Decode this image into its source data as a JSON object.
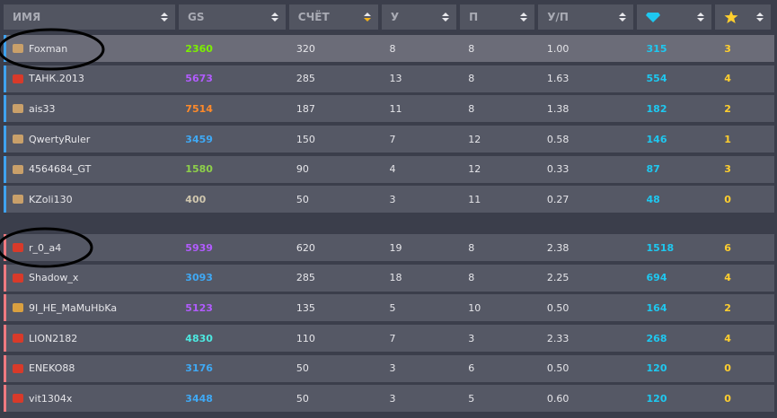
{
  "headers": [
    {
      "label": "ИМЯ"
    },
    {
      "label": "GS"
    },
    {
      "label": "СЧЁТ",
      "sorted": true
    },
    {
      "label": "У"
    },
    {
      "label": "П"
    },
    {
      "label": "У/П"
    },
    {
      "label": "",
      "icon": "diamond-icon"
    },
    {
      "label": "",
      "icon": "star-icon"
    }
  ],
  "colors": {
    "team1": "#3fa2ef",
    "team2": "#f07a80",
    "gem": "#1ec8f0",
    "star": "#ffcf2e"
  },
  "team1": [
    {
      "name": "Foxman",
      "gs": "2360",
      "gs_color": "#7cf000",
      "score": "320",
      "k": "8",
      "d": "8",
      "kd": "1.00",
      "gems": "315",
      "stars": "3",
      "rank": "#c9a06a",
      "highlight": true
    },
    {
      "name": "ТАНК.2013",
      "gs": "5673",
      "gs_color": "#b25cff",
      "score": "285",
      "k": "13",
      "d": "8",
      "kd": "1.63",
      "gems": "554",
      "stars": "4",
      "rank": "#d83a2a"
    },
    {
      "name": "ais33",
      "gs": "7514",
      "gs_color": "#ff8a2a",
      "score": "187",
      "k": "11",
      "d": "8",
      "kd": "1.38",
      "gems": "182",
      "stars": "2",
      "rank": "#c9a06a"
    },
    {
      "name": "QwertyRuler",
      "gs": "3459",
      "gs_color": "#3fa9f5",
      "score": "150",
      "k": "7",
      "d": "12",
      "kd": "0.58",
      "gems": "146",
      "stars": "1",
      "rank": "#c9a06a"
    },
    {
      "name": "4564684_GT",
      "gs": "1580",
      "gs_color": "#8ed04a",
      "score": "90",
      "k": "4",
      "d": "12",
      "kd": "0.33",
      "gems": "87",
      "stars": "3",
      "rank": "#c9a06a"
    },
    {
      "name": "KZoli130",
      "gs": "400",
      "gs_color": "#cfc6ae",
      "score": "50",
      "k": "3",
      "d": "11",
      "kd": "0.27",
      "gems": "48",
      "stars": "0",
      "rank": "#c9a06a"
    }
  ],
  "team2": [
    {
      "name": "r_0_a4",
      "gs": "5939",
      "gs_color": "#b25cff",
      "score": "620",
      "k": "19",
      "d": "8",
      "kd": "2.38",
      "gems": "1518",
      "stars": "6",
      "rank": "#d83a2a"
    },
    {
      "name": "Shadow_x",
      "gs": "3093",
      "gs_color": "#3fa9f5",
      "score": "285",
      "k": "18",
      "d": "8",
      "kd": "2.25",
      "gems": "694",
      "stars": "4",
      "rank": "#d83a2a"
    },
    {
      "name": "9I_HE_MaMuHbKa",
      "gs": "5123",
      "gs_color": "#b25cff",
      "score": "135",
      "k": "5",
      "d": "10",
      "kd": "0.50",
      "gems": "164",
      "stars": "2",
      "rank": "#d9a040"
    },
    {
      "name": "LION2182",
      "gs": "4830",
      "gs_color": "#4de8e0",
      "score": "110",
      "k": "7",
      "d": "3",
      "kd": "2.33",
      "gems": "268",
      "stars": "4",
      "rank": "#d83a2a"
    },
    {
      "name": "ENEKO88",
      "gs": "3176",
      "gs_color": "#3fa9f5",
      "score": "50",
      "k": "3",
      "d": "6",
      "kd": "0.50",
      "gems": "120",
      "stars": "0",
      "rank": "#d83a2a"
    },
    {
      "name": "vit1304x",
      "gs": "3448",
      "gs_color": "#3fa9f5",
      "score": "50",
      "k": "3",
      "d": "5",
      "kd": "0.60",
      "gems": "120",
      "stars": "0",
      "rank": "#d83a2a"
    }
  ]
}
